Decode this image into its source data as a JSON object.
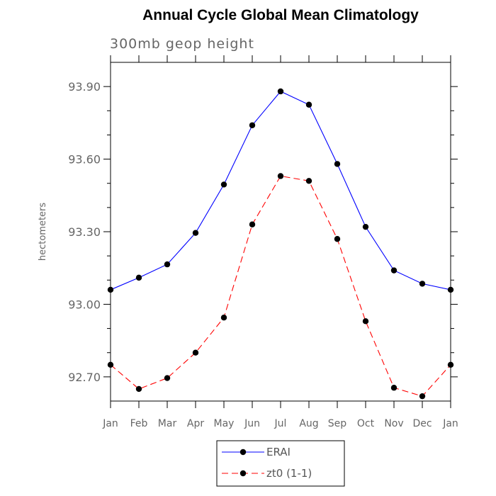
{
  "chart_data": {
    "type": "line",
    "title": "Annual Cycle Global Mean Climatology",
    "subtitle": "300mb geop height",
    "xlabel": "",
    "ylabel": "hectometers",
    "categories": [
      "Jan",
      "Feb",
      "Mar",
      "Apr",
      "May",
      "Jun",
      "Jul",
      "Aug",
      "Sep",
      "Oct",
      "Nov",
      "Dec",
      "Jan"
    ],
    "ylim": [
      92.6,
      94.0
    ],
    "yticks": [
      92.7,
      93.0,
      93.3,
      93.6,
      93.9
    ],
    "ytick_labels": [
      "92.70",
      "93.00",
      "93.30",
      "93.60",
      "93.90"
    ],
    "series": [
      {
        "name": "ERAI",
        "color": "#0000ff",
        "dash": "solid",
        "values": [
          93.06,
          93.11,
          93.165,
          93.295,
          93.495,
          93.74,
          93.88,
          93.825,
          93.58,
          93.32,
          93.14,
          93.085,
          93.06
        ]
      },
      {
        "name": "zt0 (1-1)",
        "color": "#ff0000",
        "dash": "dashed",
        "values": [
          92.75,
          92.65,
          92.695,
          92.8,
          92.945,
          93.33,
          93.53,
          93.51,
          93.27,
          92.93,
          92.655,
          92.62,
          92.75
        ]
      }
    ],
    "legend_position": "bottom-center",
    "grid": false
  }
}
